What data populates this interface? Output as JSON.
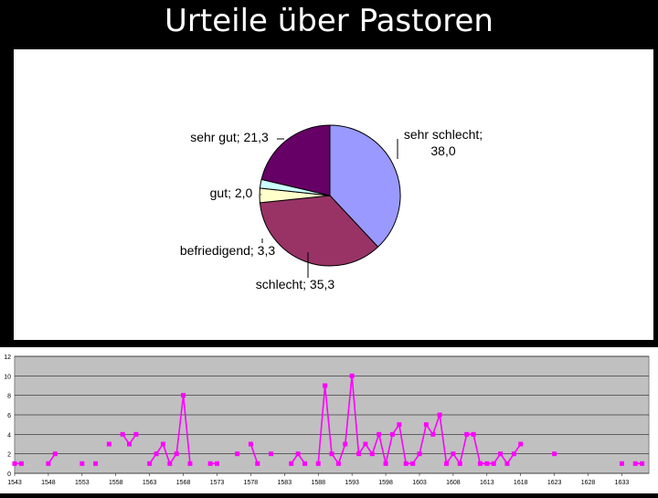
{
  "title": "Urteile über Pastoren",
  "chart_data": [
    {
      "type": "pie",
      "slices": [
        {
          "label": "sehr schlecht",
          "value": 38.0,
          "display": "sehr schlecht; 38,0",
          "color": "#9999FF"
        },
        {
          "label": "schlecht",
          "value": 35.3,
          "display": "schlecht; 35,3",
          "color": "#993366"
        },
        {
          "label": "befriedigend",
          "value": 3.3,
          "display": "befriedigend; 3,3",
          "color": "#FFFFCC"
        },
        {
          "label": "gut",
          "value": 2.0,
          "display": "gut; 2,0",
          "color": "#CCFFFF"
        },
        {
          "label": "sehr gut",
          "value": 21.3,
          "display": "sehr gut; 21,3",
          "color": "#660066"
        }
      ]
    },
    {
      "type": "line",
      "ylim": [
        0,
        12
      ],
      "yticks": [
        "0",
        "2",
        "4",
        "6",
        "8",
        "10",
        "12"
      ],
      "xlim": [
        1543,
        1637
      ],
      "xticks": [
        "1543",
        "1548",
        "1553",
        "1558",
        "1563",
        "1568",
        "1573",
        "1578",
        "1583",
        "1588",
        "1593",
        "1598",
        "1603",
        "1608",
        "1613",
        "1618",
        "1623",
        "1628",
        "1633"
      ],
      "grid": true,
      "line_color": "#FF00FF",
      "points": [
        [
          1543,
          1
        ],
        [
          1544,
          1
        ],
        [
          1548,
          1
        ],
        [
          1549,
          2
        ],
        [
          1553,
          1
        ],
        [
          1555,
          1
        ],
        [
          1557,
          3
        ],
        [
          1559,
          4
        ],
        [
          1560,
          3
        ],
        [
          1561,
          4
        ],
        [
          1563,
          1
        ],
        [
          1564,
          2
        ],
        [
          1565,
          3
        ],
        [
          1566,
          1
        ],
        [
          1567,
          2
        ],
        [
          1568,
          8
        ],
        [
          1569,
          1
        ],
        [
          1572,
          1
        ],
        [
          1573,
          1
        ],
        [
          1576,
          2
        ],
        [
          1578,
          3
        ],
        [
          1579,
          1
        ],
        [
          1581,
          2
        ],
        [
          1584,
          1
        ],
        [
          1585,
          2
        ],
        [
          1586,
          1
        ],
        [
          1588,
          1
        ],
        [
          1589,
          9
        ],
        [
          1590,
          2
        ],
        [
          1591,
          1
        ],
        [
          1592,
          3
        ],
        [
          1593,
          10
        ],
        [
          1594,
          2
        ],
        [
          1595,
          3
        ],
        [
          1596,
          2
        ],
        [
          1597,
          4
        ],
        [
          1598,
          1
        ],
        [
          1599,
          4
        ],
        [
          1600,
          5
        ],
        [
          1601,
          1
        ],
        [
          1602,
          1
        ],
        [
          1603,
          2
        ],
        [
          1604,
          5
        ],
        [
          1605,
          4
        ],
        [
          1606,
          6
        ],
        [
          1607,
          1
        ],
        [
          1608,
          2
        ],
        [
          1609,
          1
        ],
        [
          1610,
          4
        ],
        [
          1611,
          4
        ],
        [
          1612,
          1
        ],
        [
          1613,
          1
        ],
        [
          1614,
          1
        ],
        [
          1615,
          2
        ],
        [
          1616,
          1
        ],
        [
          1617,
          2
        ],
        [
          1618,
          3
        ],
        [
          1623,
          2
        ],
        [
          1633,
          1
        ],
        [
          1635,
          1
        ],
        [
          1636,
          1
        ]
      ]
    }
  ]
}
